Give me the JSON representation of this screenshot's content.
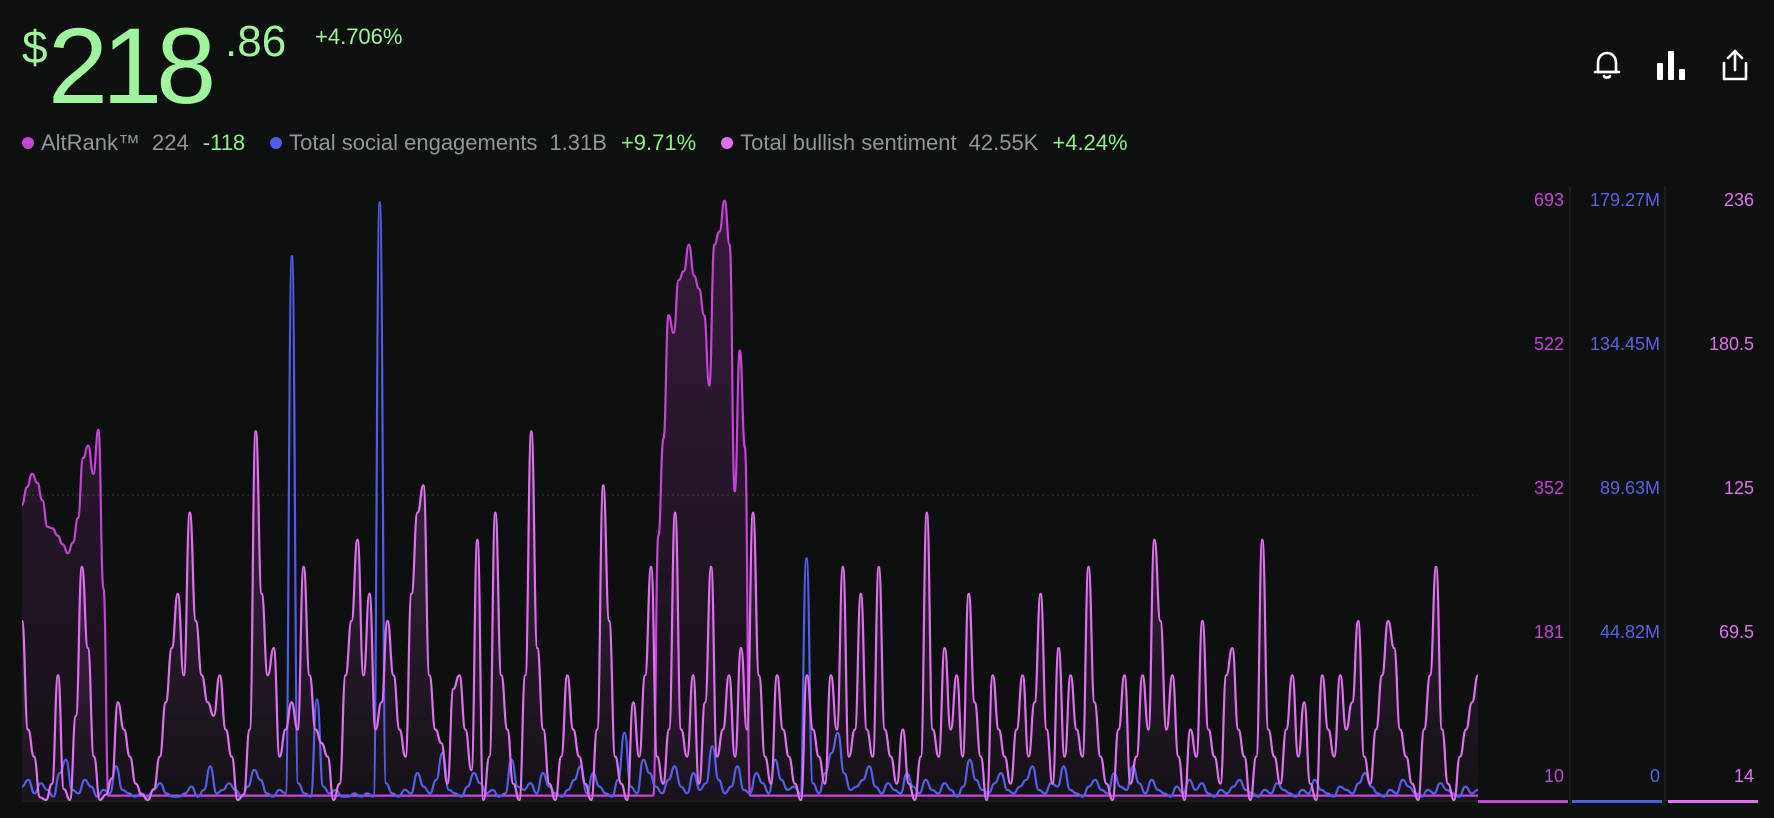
{
  "header": {
    "price_currency": "$",
    "price_integer": "218",
    "price_decimal": ".86",
    "price_change": "+4.706%",
    "price_color": "#9ef59b"
  },
  "actions": {
    "icons": [
      "bell-icon",
      "bar-chart-icon",
      "share-icon"
    ]
  },
  "legend": [
    {
      "label": "AltRank™",
      "value": "224",
      "change": "-118",
      "color": "#c543d6"
    },
    {
      "label": "Total social engagements",
      "value": "1.31B",
      "change": "+9.71%",
      "color": "#4f5ee8"
    },
    {
      "label": "Total bullish sentiment",
      "value": "42.55K",
      "change": "+4.24%",
      "color": "#e070f0"
    }
  ],
  "axes": {
    "altrank": [
      "693",
      "522",
      "352",
      "181",
      "10"
    ],
    "engagements": [
      "179.27M",
      "134.45M",
      "89.63M",
      "44.82M",
      "0"
    ],
    "bullish": [
      "236",
      "180.5",
      "125",
      "69.5",
      "14"
    ]
  },
  "chart_data": {
    "type": "line",
    "y_axes": [
      {
        "series": "AltRank™",
        "ylim": [
          10,
          693
        ]
      },
      {
        "series": "Total social engagements",
        "ylim": [
          0,
          179.27
        ]
      },
      {
        "series": "Total bullish sentiment",
        "ylim": [
          14,
          236
        ]
      }
    ],
    "series": [
      {
        "name": "AltRank™",
        "color": "#c543d6",
        "filled": true,
        "values": [
          345,
          365,
          380,
          370,
          350,
          320,
          318,
          310,
          300,
          290,
          302,
          330,
          398,
          412,
          380,
          430,
          250,
          15,
          15,
          15,
          15,
          15,
          15,
          15,
          15,
          15,
          15,
          15,
          15,
          15,
          15,
          15,
          15,
          15,
          15,
          15,
          15,
          15,
          15,
          15,
          15,
          15,
          15,
          15,
          15,
          15,
          15,
          15,
          15,
          15,
          15,
          15,
          15,
          15,
          15,
          15,
          15,
          15,
          15,
          15,
          15,
          15,
          15,
          15,
          15,
          15,
          15,
          15,
          15,
          15,
          15,
          15,
          15,
          15,
          15,
          15,
          15,
          15,
          15,
          15,
          15,
          15,
          15,
          15,
          15,
          15,
          15,
          15,
          15,
          15,
          15,
          15,
          15,
          15,
          15,
          15,
          15,
          15,
          15,
          15,
          15,
          15,
          15,
          15,
          15,
          15,
          15,
          15,
          15,
          15,
          15,
          15,
          15,
          15,
          15,
          15,
          15,
          15,
          15,
          15,
          15,
          15,
          15,
          15,
          15,
          310,
          420,
          560,
          540,
          600,
          610,
          640,
          605,
          590,
          560,
          480,
          640,
          655,
          690,
          640,
          360,
          520,
          410,
          15,
          15,
          15,
          15,
          15,
          15,
          15,
          15,
          15,
          15,
          15,
          15,
          15,
          15,
          15,
          15,
          15,
          15,
          15,
          15,
          15,
          15,
          15,
          15,
          15,
          15,
          15,
          15,
          15,
          15,
          15,
          15,
          15,
          15,
          15,
          15,
          15,
          15,
          15,
          15,
          15,
          15,
          15,
          15,
          15,
          15,
          15,
          15,
          15,
          15,
          15,
          15,
          15,
          15,
          15,
          15,
          15,
          15,
          15,
          15,
          15,
          15,
          15,
          15,
          15,
          15,
          15,
          15,
          15,
          15,
          15,
          15,
          15,
          15,
          15,
          15,
          15,
          15,
          15,
          15,
          15,
          15,
          15,
          15,
          15,
          15,
          15,
          15,
          15,
          15,
          15,
          15,
          15,
          15,
          15,
          15,
          15,
          15,
          15,
          15,
          15,
          15,
          15,
          15,
          15,
          15,
          15,
          15,
          15,
          15,
          15,
          15,
          15,
          15,
          15,
          15,
          15,
          15,
          15,
          15,
          15,
          15,
          15,
          15,
          15,
          15,
          15,
          15,
          15,
          15,
          15,
          15,
          15,
          15,
          15,
          15,
          15,
          15,
          15,
          15,
          15,
          15,
          15,
          15
        ]
      },
      {
        "name": "Total social engagements",
        "color": "#4f5ee8",
        "filled": false,
        "values": [
          4,
          6,
          2,
          5,
          3,
          1,
          8,
          12,
          3,
          2,
          6,
          4,
          1,
          3,
          2,
          10,
          3,
          2,
          1,
          2,
          1,
          3,
          5,
          2,
          1,
          1,
          2,
          4,
          1,
          3,
          10,
          2,
          3,
          5,
          3,
          1,
          4,
          9,
          6,
          2,
          1,
          3,
          2,
          162,
          5,
          2,
          1,
          30,
          4,
          2,
          3,
          1,
          1,
          2,
          1,
          2,
          1,
          178,
          5,
          2,
          1,
          3,
          2,
          8,
          4,
          2,
          6,
          14,
          3,
          2,
          1,
          4,
          8,
          5,
          2,
          3,
          1,
          2,
          12,
          4,
          3,
          5,
          2,
          8,
          4,
          2,
          1,
          3,
          6,
          10,
          2,
          8,
          4,
          2,
          1,
          6,
          20,
          4,
          2,
          12,
          8,
          4,
          2,
          6,
          10,
          4,
          2,
          8,
          3,
          5,
          16,
          6,
          2,
          4,
          10,
          3,
          2,
          8,
          5,
          2,
          12,
          6,
          3,
          4,
          2,
          72,
          5,
          2,
          8,
          14,
          20,
          8,
          3,
          4,
          6,
          10,
          4,
          2,
          5,
          3,
          2,
          8,
          4,
          2,
          6,
          3,
          2,
          5,
          3,
          1,
          4,
          12,
          6,
          3,
          2,
          5,
          8,
          3,
          2,
          4,
          6,
          10,
          3,
          2,
          5,
          4,
          10,
          3,
          2,
          1,
          4,
          6,
          3,
          2,
          8,
          4,
          3,
          10,
          5,
          2,
          6,
          3,
          2,
          1,
          4,
          2,
          6,
          3,
          5,
          2,
          1,
          3,
          2,
          4,
          6,
          3,
          2,
          1,
          3,
          2,
          5,
          3,
          2,
          1,
          3,
          2,
          6,
          3,
          2,
          1,
          4,
          3,
          2,
          5,
          8,
          4,
          2,
          1,
          3,
          2,
          6,
          4,
          2,
          1,
          3,
          2,
          5,
          3,
          2,
          1,
          4,
          2,
          3
        ]
      },
      {
        "name": "Total bullish sentiment",
        "color": "#e070f0",
        "filled": true,
        "values": [
          80,
          40,
          30,
          15,
          14,
          20,
          60,
          18,
          14,
          45,
          100,
          70,
          30,
          14,
          16,
          22,
          50,
          40,
          30,
          20,
          16,
          14,
          18,
          30,
          50,
          70,
          90,
          60,
          120,
          80,
          60,
          50,
          45,
          60,
          40,
          30,
          14,
          16,
          40,
          150,
          90,
          60,
          70,
          30,
          40,
          50,
          40,
          100,
          60,
          40,
          35,
          30,
          14,
          20,
          60,
          80,
          110,
          60,
          90,
          40,
          50,
          80,
          60,
          40,
          30,
          90,
          120,
          130,
          60,
          40,
          35,
          20,
          55,
          60,
          40,
          25,
          110,
          14,
          30,
          120,
          60,
          40,
          20,
          14,
          60,
          150,
          70,
          40,
          20,
          14,
          30,
          60,
          40,
          30,
          20,
          14,
          40,
          130,
          80,
          30,
          20,
          14,
          50,
          30,
          60,
          100,
          30,
          20,
          40,
          120,
          40,
          30,
          60,
          20,
          50,
          100,
          30,
          40,
          60,
          30,
          70,
          40,
          120,
          60,
          30,
          20,
          60,
          40,
          30,
          20,
          14,
          60,
          40,
          30,
          20,
          60,
          40,
          100,
          30,
          40,
          90,
          40,
          30,
          100,
          40,
          30,
          20,
          40,
          20,
          14,
          30,
          120,
          40,
          30,
          70,
          40,
          60,
          30,
          90,
          50,
          30,
          14,
          60,
          40,
          30,
          20,
          40,
          60,
          30,
          50,
          90,
          40,
          20,
          70,
          30,
          60,
          40,
          30,
          100,
          50,
          30,
          20,
          14,
          40,
          60,
          20,
          30,
          60,
          40,
          110,
          80,
          40,
          60,
          30,
          14,
          40,
          30,
          80,
          40,
          30,
          20,
          60,
          70,
          40,
          30,
          14,
          30,
          110,
          40,
          30,
          20,
          40,
          60,
          30,
          50,
          20,
          14,
          60,
          40,
          30,
          60,
          40,
          50,
          80,
          30,
          20,
          40,
          60,
          80,
          70,
          40,
          30,
          20,
          14,
          40,
          60,
          100,
          40,
          20,
          14,
          30,
          40,
          50,
          60
        ]
      }
    ]
  }
}
